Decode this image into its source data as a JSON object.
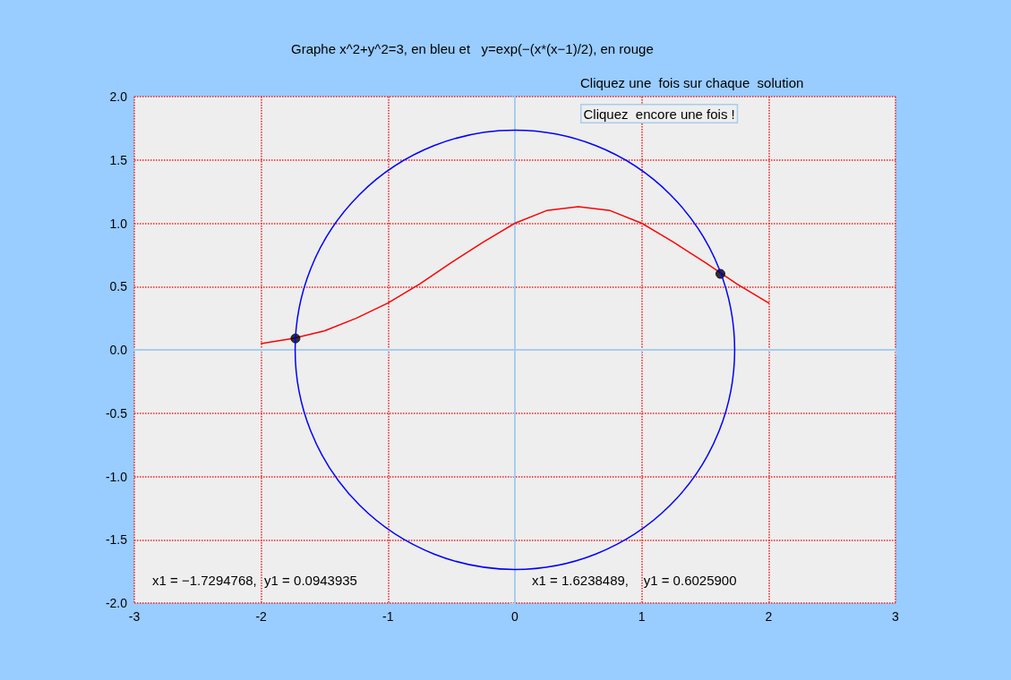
{
  "chart_data": {
    "type": "line",
    "title": "Graphe x^2+y^2=3, en bleu et   y=exp(−(x*(x−1)/2), en rouge",
    "xlim": [
      -3,
      3
    ],
    "ylim": [
      -2,
      2
    ],
    "xticks": [
      -3,
      -2,
      -1,
      0,
      1,
      2,
      3
    ],
    "yticks": [
      {
        "value": -2,
        "label": "-2.0"
      },
      {
        "value": -1.5,
        "label": "-1.5"
      },
      {
        "value": -1,
        "label": "-1.0"
      },
      {
        "value": -0.5,
        "label": "-0.5"
      },
      {
        "value": 0,
        "label": "0.0"
      },
      {
        "value": 0.5,
        "label": "0.5"
      },
      {
        "value": 1,
        "label": "1.0"
      },
      {
        "value": 1.5,
        "label": "1.5"
      },
      {
        "value": 2,
        "label": "2.0"
      }
    ],
    "grid": true,
    "marker": "none",
    "line_style": "solid",
    "series": [
      {
        "color": "#ff0000",
        "x": [
          -2,
          -1.75,
          -1.5,
          -1.25,
          -1,
          -0.75,
          -0.5,
          -0.25,
          0,
          0.25,
          0.5,
          0.75,
          1,
          1.25,
          1.5,
          1.75,
          2
        ],
        "values": [
          0.05,
          0.09,
          0.15,
          0.25,
          0.37,
          0.52,
          0.69,
          0.85,
          1,
          1.1,
          1.13,
          1.1,
          1,
          0.85,
          0.69,
          0.52,
          0.37
        ]
      },
      {
        "type": "scatter",
        "marker": "circle",
        "color": "#000000",
        "x": [
          -1.73,
          1.62
        ],
        "values": [
          0.09,
          0.6
        ]
      }
    ],
    "annotations": [
      "Cliquez une  fois sur chaque  solution",
      "Cliquez  encore une fois !",
      "x1 = −1.7294768,  y1 = 0.0943935",
      "x1 = 1.6238489,    y1 = 0.6025900"
    ]
  }
}
